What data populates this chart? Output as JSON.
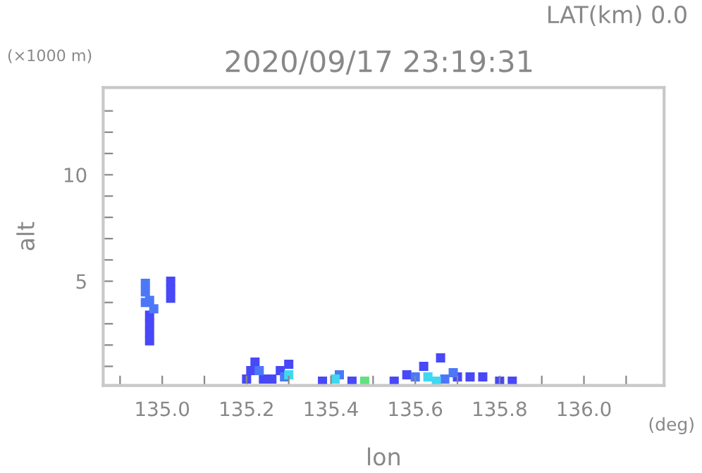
{
  "chart_data": {
    "type": "scatter",
    "title": "2020/09/17 23:19:31",
    "xlabel": "lon",
    "ylabel": "alt",
    "annotations": [
      "LAT(km) 0.0",
      "(×1000 m)",
      "(deg)"
    ],
    "xlim": [
      134.86,
      136.19
    ],
    "ylim": [
      0.1,
      14.1
    ],
    "xticks": [
      {
        "value": 134.9,
        "label": null
      },
      {
        "value": 135.0,
        "label": "135.0"
      },
      {
        "value": 135.1,
        "label": null
      },
      135.2,
      {
        "value": 135.3,
        "label": null
      },
      135.4,
      {
        "value": 135.5,
        "label": null
      },
      135.6,
      {
        "value": 135.7,
        "label": null
      },
      135.8,
      {
        "value": 135.9,
        "label": null
      },
      {
        "value": 136.0,
        "label": "136.0"
      },
      {
        "value": 136.1,
        "label": null
      }
    ],
    "yticks": [
      {
        "value": 1,
        "label": null
      },
      {
        "value": 2,
        "label": null
      },
      {
        "value": 3,
        "label": null
      },
      {
        "value": 4,
        "label": null
      },
      5,
      {
        "value": 6,
        "label": null
      },
      {
        "value": 7,
        "label": null
      },
      {
        "value": 8,
        "label": null
      },
      {
        "value": 9,
        "label": null
      },
      10,
      {
        "value": 11,
        "label": null
      },
      {
        "value": 12,
        "label": null
      },
      {
        "value": 13,
        "label": null
      }
    ],
    "marker": "square",
    "grid": false,
    "legend": false,
    "series": [
      {
        "color": "#4848f8",
        "x": [
          134.97,
          134.97,
          134.97,
          134.97,
          135.02,
          135.02,
          135.02,
          135.2,
          135.21,
          135.22,
          135.24,
          135.26,
          135.28,
          135.3,
          135.38,
          135.45,
          135.55,
          135.58,
          135.62,
          135.66,
          135.7,
          135.73,
          135.76,
          135.8,
          135.83
        ],
        "values": [
          2.2,
          2.6,
          3.0,
          3.4,
          4.2,
          4.6,
          5.0,
          0.4,
          0.8,
          1.2,
          0.4,
          0.4,
          0.8,
          1.1,
          0.3,
          0.3,
          0.3,
          0.6,
          1.0,
          1.4,
          0.5,
          0.5,
          0.5,
          0.3,
          0.3
        ]
      },
      {
        "color": "#4c78f8",
        "x": [
          134.96,
          134.96,
          134.97,
          134.98,
          134.96,
          135.23,
          135.29,
          135.42,
          135.6,
          135.67,
          135.69
        ],
        "values": [
          4.9,
          4.5,
          4.1,
          3.7,
          4.0,
          0.8,
          0.5,
          0.6,
          0.5,
          0.4,
          0.7
        ]
      },
      {
        "color": "#40d8f0",
        "x": [
          135.3,
          135.41,
          135.63,
          135.65
        ],
        "values": [
          0.6,
          0.4,
          0.5,
          0.3
        ]
      },
      {
        "color": "#60e080",
        "x": [
          135.48
        ],
        "values": [
          0.3
        ]
      }
    ]
  }
}
